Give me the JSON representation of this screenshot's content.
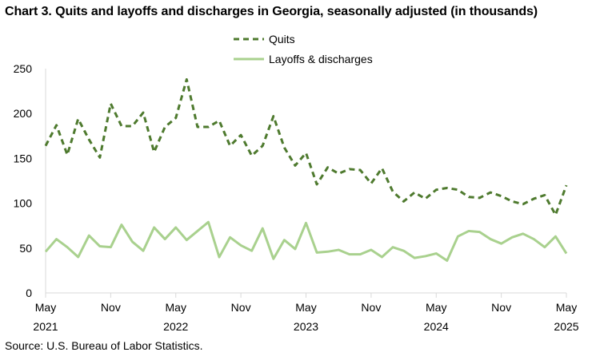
{
  "title": "Chart 3. Quits and layoffs and discharges in Georgia, seasonally adjusted (in thousands)",
  "source": "Source: U.S. Bureau of Labor Statistics.",
  "colors": {
    "quits": "#4e7a2e",
    "layoffs": "#a9d18e",
    "axis": "#d9d9d9"
  },
  "chart_data": {
    "type": "line",
    "title": "Chart 3. Quits and layoffs and discharges in Georgia, seasonally adjusted (in thousands)",
    "xlabel": "",
    "ylabel": "",
    "ylim": [
      0,
      250
    ],
    "yticks": [
      "0",
      "50",
      "100",
      "150",
      "200",
      "250"
    ],
    "grid": false,
    "legend_position": "top-center",
    "x": [
      "2021-05",
      "2021-06",
      "2021-07",
      "2021-08",
      "2021-09",
      "2021-10",
      "2021-11",
      "2021-12",
      "2022-01",
      "2022-02",
      "2022-03",
      "2022-04",
      "2022-05",
      "2022-06",
      "2022-07",
      "2022-08",
      "2022-09",
      "2022-10",
      "2022-11",
      "2022-12",
      "2023-01",
      "2023-02",
      "2023-03",
      "2023-04",
      "2023-05",
      "2023-06",
      "2023-07",
      "2023-08",
      "2023-09",
      "2023-10",
      "2023-11",
      "2023-12",
      "2024-01",
      "2024-02",
      "2024-03",
      "2024-04",
      "2024-05",
      "2024-06",
      "2024-07",
      "2024-08",
      "2024-09",
      "2024-10",
      "2024-11",
      "2024-12",
      "2025-01",
      "2025-02",
      "2025-03",
      "2025-04",
      "2025-05"
    ],
    "x_tick_labels": [
      {
        "month": "May",
        "year": "2021"
      },
      {
        "month": "Nov",
        "year": ""
      },
      {
        "month": "May",
        "year": "2022"
      },
      {
        "month": "Nov",
        "year": ""
      },
      {
        "month": "May",
        "year": "2023"
      },
      {
        "month": "Nov",
        "year": ""
      },
      {
        "month": "May",
        "year": "2024"
      },
      {
        "month": "Nov",
        "year": ""
      },
      {
        "month": "May",
        "year": "2025"
      }
    ],
    "series": [
      {
        "name": "Quits",
        "style": "dashed",
        "values": [
          164,
          187,
          154,
          194,
          171,
          151,
          211,
          186,
          186,
          201,
          157,
          185,
          195,
          238,
          185,
          185,
          192,
          164,
          176,
          153,
          164,
          197,
          162,
          142,
          156,
          121,
          140,
          133,
          138,
          137,
          122,
          139,
          113,
          102,
          112,
          105,
          115,
          117,
          115,
          107,
          106,
          112,
          108,
          102,
          99,
          105,
          109,
          87,
          120
        ]
      },
      {
        "name": "Layoffs & discharges",
        "style": "solid",
        "values": [
          46,
          60,
          51,
          40,
          64,
          52,
          51,
          76,
          57,
          47,
          73,
          60,
          73,
          59,
          69,
          79,
          40,
          62,
          53,
          47,
          72,
          38,
          59,
          49,
          78,
          45,
          46,
          48,
          43,
          43,
          48,
          40,
          51,
          47,
          39,
          41,
          44,
          36,
          63,
          69,
          68,
          60,
          55,
          62,
          66,
          60,
          51,
          63,
          44
        ]
      }
    ]
  }
}
